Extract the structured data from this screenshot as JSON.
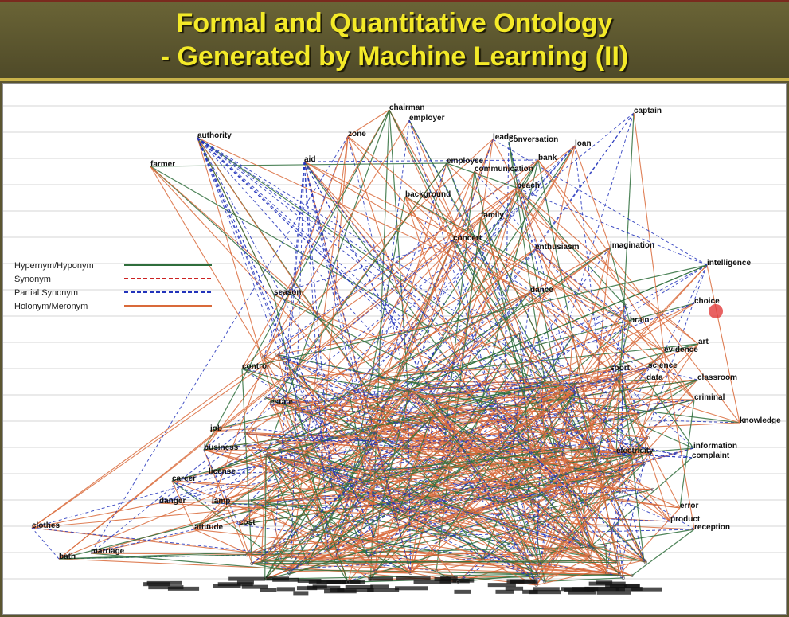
{
  "title": {
    "line1": "Formal and Quantitative Ontology",
    "line2": "- Generated by Machine Learning (II)"
  },
  "colors": {
    "title_text": "#f4ea28",
    "hypernym": "#2f6e3c",
    "synonym": "#cc2222",
    "partial_synonym": "#2233bb",
    "holonym": "#d96a3a"
  },
  "legend": [
    {
      "label": "Hypernym/Hyponym",
      "style": "hypernym"
    },
    {
      "label": "Synonym",
      "style": "synonym"
    },
    {
      "label": "Partial Synonym",
      "style": "partial_synonym"
    },
    {
      "label": "Holonym/Meronym",
      "style": "holonym"
    }
  ],
  "nodes": [
    {
      "id": "chairman",
      "label": "chairman"
    },
    {
      "id": "employer",
      "label": "employer"
    },
    {
      "id": "captain",
      "label": "captain"
    },
    {
      "id": "authority",
      "label": "authority"
    },
    {
      "id": "zone",
      "label": "zone"
    },
    {
      "id": "leader",
      "label": "leader"
    },
    {
      "id": "conversation",
      "label": "conversation"
    },
    {
      "id": "loan",
      "label": "loan"
    },
    {
      "id": "farmer",
      "label": "farmer"
    },
    {
      "id": "aid",
      "label": "aid"
    },
    {
      "id": "employee",
      "label": "employee"
    },
    {
      "id": "bank",
      "label": "bank"
    },
    {
      "id": "communication",
      "label": "communication"
    },
    {
      "id": "beach",
      "label": "beach"
    },
    {
      "id": "background",
      "label": "background"
    },
    {
      "id": "enthusiasm",
      "label": "enthusiasm"
    },
    {
      "id": "imagination",
      "label": "imagination"
    },
    {
      "id": "intelligence",
      "label": "intelligence"
    },
    {
      "id": "choice",
      "label": "choice"
    },
    {
      "id": "art",
      "label": "art"
    },
    {
      "id": "evidence",
      "label": "evidence"
    },
    {
      "id": "classroom",
      "label": "classroom"
    },
    {
      "id": "criminal",
      "label": "criminal"
    },
    {
      "id": "knowledge",
      "label": "knowledge"
    },
    {
      "id": "information",
      "label": "information"
    },
    {
      "id": "complaint",
      "label": "complaint"
    },
    {
      "id": "electricity",
      "label": "electricity"
    },
    {
      "id": "brain",
      "label": "brain"
    },
    {
      "id": "data",
      "label": "data"
    },
    {
      "id": "business",
      "label": "business"
    },
    {
      "id": "career",
      "label": "career"
    },
    {
      "id": "license",
      "label": "license"
    },
    {
      "id": "danger",
      "label": "danger"
    },
    {
      "id": "lamp",
      "label": "lamp"
    },
    {
      "id": "clothes",
      "label": "clothes"
    },
    {
      "id": "marriage",
      "label": "marriage"
    },
    {
      "id": "bath",
      "label": "bath"
    },
    {
      "id": "job",
      "label": "job"
    },
    {
      "id": "control",
      "label": "control"
    },
    {
      "id": "estate",
      "label": "estate"
    },
    {
      "id": "cost",
      "label": "cost"
    },
    {
      "id": "attitude",
      "label": "attitude"
    },
    {
      "id": "error",
      "label": "error"
    },
    {
      "id": "product",
      "label": "product"
    },
    {
      "id": "reception",
      "label": "reception"
    },
    {
      "id": "family",
      "label": "family"
    },
    {
      "id": "concert",
      "label": "concert"
    },
    {
      "id": "season",
      "label": "season"
    },
    {
      "id": "science",
      "label": "science"
    },
    {
      "id": "sport",
      "label": "sport"
    },
    {
      "id": "dance",
      "label": "dance"
    }
  ]
}
